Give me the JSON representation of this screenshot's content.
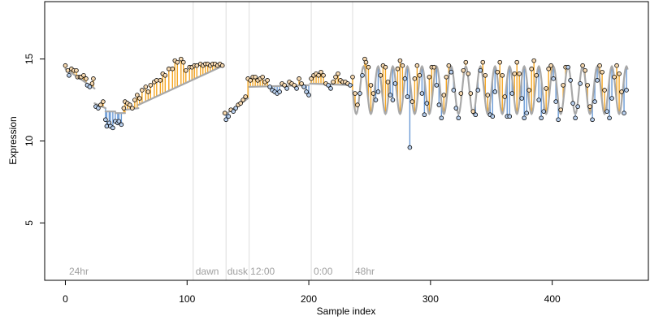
{
  "chart_data": {
    "type": "scatter",
    "title": "",
    "xlabel": "Sample index",
    "ylabel": "Expression",
    "xlim": [
      -17,
      479
    ],
    "ylim": [
      1.5,
      18.5
    ],
    "x_ticks": [
      0,
      100,
      200,
      300,
      400
    ],
    "y_ticks": [
      5,
      10,
      15
    ],
    "grid": false,
    "colors": {
      "fit_line": "#a8a8a8",
      "above_fit": "#f5a623",
      "below_fit": "#6a9ad6",
      "point_fill_above": "#f7d9b0",
      "point_fill_below": "#b9d0ee",
      "point_stroke": "#000000",
      "phase_divider": "#dddddd",
      "phase_label": "#a0a0a0"
    },
    "phase_labels": [
      {
        "label": "24hr",
        "x": 3
      },
      {
        "label": "dawn",
        "x": 107
      },
      {
        "label": "dusk",
        "x": 133
      },
      {
        "label": "12:00",
        "x": 152
      },
      {
        "label": "0:00",
        "x": 204
      },
      {
        "label": "48hr",
        "x": 238
      }
    ],
    "phase_dividers": [
      105,
      132,
      151,
      202,
      236
    ],
    "fit_segments": [
      {
        "x": [
          0,
          24
        ],
        "y": [
          14.4,
          13.2
        ]
      },
      {
        "x": [
          24,
          33
        ],
        "y": [
          12.3,
          12.0
        ]
      },
      {
        "x": [
          33,
          41
        ],
        "y": [
          11.8,
          11.8
        ]
      },
      {
        "x": [
          41,
          49
        ],
        "y": [
          11.7,
          11.7
        ]
      },
      {
        "x": [
          49,
          60
        ],
        "y": [
          11.9,
          12.0
        ]
      },
      {
        "x": [
          60,
          130
        ],
        "y": [
          12.2,
          14.6
        ]
      },
      {
        "x": [
          131,
          150
        ],
        "y": [
          11.6,
          12.6
        ]
      },
      {
        "x": [
          151,
          200
        ],
        "y": [
          13.3,
          13.4
        ]
      },
      {
        "x": [
          201,
          236
        ],
        "y": [
          13.5,
          13.4
        ]
      }
    ],
    "oscillation": {
      "x_start": 236,
      "x_end": 462,
      "period": 12,
      "center": 13.1,
      "amplitude": 1.45,
      "trough_at": 239
    },
    "series": [
      {
        "values": [
          [
            0,
            14.6
          ],
          [
            2,
            14.3
          ],
          [
            3,
            14.0
          ],
          [
            5,
            14.4
          ],
          [
            7,
            14.3
          ],
          [
            9,
            14.3
          ],
          [
            10,
            13.9
          ],
          [
            12,
            13.9
          ],
          [
            13,
            13.9
          ],
          [
            15,
            14.0
          ],
          [
            17,
            13.8
          ],
          [
            18,
            13.4
          ],
          [
            20,
            13.3
          ],
          [
            22,
            13.5
          ],
          [
            23,
            13.8
          ],
          [
            25,
            12.1
          ],
          [
            27,
            12.0
          ],
          [
            29,
            12.2
          ],
          [
            31,
            12.4
          ],
          [
            33,
            11.3
          ],
          [
            34,
            10.9
          ],
          [
            36,
            11.1
          ],
          [
            37,
            10.9
          ],
          [
            39,
            10.8
          ],
          [
            41,
            11.2
          ],
          [
            43,
            11.1
          ],
          [
            44,
            11.2
          ],
          [
            46,
            11.0
          ],
          [
            48,
            12.0
          ],
          [
            49,
            12.4
          ],
          [
            51,
            12.3
          ],
          [
            53,
            12.2
          ],
          [
            55,
            12.0
          ],
          [
            57,
            12.5
          ],
          [
            59,
            12.8
          ],
          [
            61,
            12.6
          ],
          [
            63,
            13.1
          ],
          [
            66,
            13.3
          ],
          [
            68,
            13.0
          ],
          [
            70,
            13.4
          ],
          [
            73,
            13.6
          ],
          [
            75,
            13.7
          ],
          [
            78,
            13.7
          ],
          [
            80,
            14.1
          ],
          [
            82,
            14.0
          ],
          [
            85,
            14.4
          ],
          [
            88,
            14.4
          ],
          [
            90,
            14.9
          ],
          [
            92,
            14.8
          ],
          [
            95,
            15.0
          ],
          [
            97,
            14.8
          ],
          [
            99,
            14.3
          ],
          [
            102,
            14.5
          ],
          [
            104,
            14.5
          ],
          [
            106,
            14.6
          ],
          [
            108,
            14.6
          ],
          [
            111,
            14.7
          ],
          [
            113,
            14.6
          ],
          [
            115,
            14.7
          ],
          [
            117,
            14.7
          ],
          [
            119,
            14.6
          ],
          [
            121,
            14.7
          ],
          [
            123,
            14.7
          ],
          [
            125,
            14.6
          ],
          [
            127,
            14.7
          ],
          [
            129,
            14.6
          ],
          [
            131,
            11.7
          ],
          [
            132,
            11.3
          ],
          [
            134,
            11.5
          ],
          [
            136,
            11.9
          ],
          [
            138,
            11.8
          ],
          [
            140,
            12.0
          ],
          [
            142,
            12.2
          ],
          [
            144,
            12.3
          ],
          [
            146,
            12.5
          ],
          [
            148,
            12.7
          ],
          [
            150,
            13.8
          ],
          [
            152,
            13.7
          ],
          [
            154,
            13.9
          ],
          [
            156,
            13.9
          ],
          [
            158,
            13.7
          ],
          [
            160,
            13.8
          ],
          [
            162,
            13.9
          ],
          [
            164,
            13.6
          ],
          [
            166,
            13.7
          ],
          [
            168,
            13.3
          ],
          [
            170,
            13.1
          ],
          [
            172,
            13.0
          ],
          [
            174,
            12.9
          ],
          [
            176,
            13.0
          ],
          [
            178,
            13.5
          ],
          [
            180,
            13.4
          ],
          [
            182,
            13.2
          ],
          [
            184,
            13.6
          ],
          [
            186,
            13.5
          ],
          [
            188,
            13.4
          ],
          [
            190,
            13.2
          ],
          [
            192,
            13.8
          ],
          [
            194,
            13.5
          ],
          [
            196,
            13.3
          ],
          [
            198,
            13.0
          ],
          [
            200,
            12.8
          ],
          [
            202,
            13.8
          ],
          [
            204,
            14.0
          ],
          [
            206,
            14.1
          ],
          [
            208,
            14.0
          ],
          [
            210,
            14.2
          ],
          [
            212,
            14.0
          ],
          [
            214,
            13.5
          ],
          [
            216,
            13.4
          ],
          [
            218,
            13.2
          ],
          [
            220,
            13.6
          ],
          [
            222,
            13.9
          ],
          [
            224,
            14.1
          ],
          [
            226,
            13.7
          ],
          [
            228,
            13.6
          ],
          [
            230,
            13.6
          ],
          [
            232,
            13.5
          ],
          [
            234,
            13.4
          ],
          [
            236,
            13.9
          ],
          [
            238,
            12.9
          ],
          [
            240,
            12.2
          ],
          [
            242,
            12.9
          ],
          [
            244,
            14.0
          ],
          [
            246,
            15.0
          ],
          [
            247,
            14.8
          ],
          [
            249,
            14.5
          ],
          [
            251,
            13.4
          ],
          [
            253,
            12.9
          ],
          [
            255,
            12.5
          ],
          [
            257,
            13.0
          ],
          [
            259,
            14.0
          ],
          [
            261,
            14.6
          ],
          [
            263,
            14.5
          ],
          [
            265,
            13.6
          ],
          [
            267,
            12.8
          ],
          [
            269,
            12.5
          ],
          [
            271,
            13.5
          ],
          [
            273,
            14.4
          ],
          [
            275,
            14.9
          ],
          [
            277,
            14.6
          ],
          [
            279,
            13.8
          ],
          [
            281,
            12.7
          ],
          [
            283,
            9.6
          ],
          [
            285,
            12.4
          ],
          [
            287,
            13.8
          ],
          [
            289,
            14.6
          ],
          [
            291,
            14.0
          ],
          [
            293,
            12.9
          ],
          [
            295,
            11.6
          ],
          [
            297,
            12.3
          ],
          [
            299,
            13.9
          ],
          [
            301,
            14.5
          ],
          [
            303,
            14.5
          ],
          [
            305,
            13.4
          ],
          [
            307,
            12.2
          ],
          [
            309,
            11.4
          ],
          [
            311,
            12.8
          ],
          [
            313,
            13.9
          ],
          [
            315,
            14.6
          ],
          [
            317,
            14.2
          ],
          [
            319,
            13.1
          ],
          [
            321,
            12.0
          ],
          [
            323,
            11.4
          ],
          [
            325,
            12.9
          ],
          [
            327,
            14.3
          ],
          [
            329,
            14.8
          ],
          [
            331,
            14.1
          ],
          [
            333,
            12.9
          ],
          [
            335,
            11.8
          ],
          [
            337,
            11.6
          ],
          [
            339,
            13.1
          ],
          [
            341,
            14.3
          ],
          [
            343,
            14.8
          ],
          [
            345,
            14.0
          ],
          [
            347,
            12.8
          ],
          [
            349,
            11.6
          ],
          [
            351,
            11.5
          ],
          [
            353,
            13.0
          ],
          [
            355,
            14.2
          ],
          [
            357,
            14.8
          ],
          [
            359,
            14.0
          ],
          [
            361,
            12.7
          ],
          [
            363,
            11.5
          ],
          [
            365,
            11.5
          ],
          [
            367,
            12.9
          ],
          [
            369,
            14.1
          ],
          [
            371,
            14.8
          ],
          [
            373,
            14.1
          ],
          [
            375,
            12.6
          ],
          [
            377,
            11.4
          ],
          [
            379,
            11.7
          ],
          [
            381,
            13.1
          ],
          [
            383,
            14.4
          ],
          [
            385,
            14.9
          ],
          [
            387,
            14.0
          ],
          [
            389,
            12.5
          ],
          [
            391,
            11.4
          ],
          [
            393,
            11.8
          ],
          [
            395,
            13.2
          ],
          [
            397,
            14.4
          ],
          [
            399,
            14.6
          ],
          [
            401,
            13.8
          ],
          [
            403,
            12.4
          ],
          [
            405,
            11.3
          ],
          [
            407,
            11.9
          ],
          [
            409,
            13.4
          ],
          [
            411,
            14.5
          ],
          [
            413,
            14.5
          ],
          [
            415,
            13.7
          ],
          [
            417,
            12.3
          ],
          [
            419,
            11.4
          ],
          [
            421,
            12.1
          ],
          [
            423,
            13.5
          ],
          [
            425,
            14.6
          ],
          [
            427,
            14.3
          ],
          [
            429,
            13.4
          ],
          [
            431,
            12.1
          ],
          [
            433,
            11.3
          ],
          [
            435,
            12.4
          ],
          [
            437,
            13.7
          ],
          [
            439,
            14.6
          ],
          [
            441,
            14.2
          ],
          [
            443,
            13.1
          ],
          [
            445,
            11.8
          ],
          [
            447,
            11.4
          ],
          [
            449,
            12.6
          ],
          [
            451,
            13.9
          ],
          [
            453,
            14.6
          ],
          [
            455,
            14.1
          ],
          [
            457,
            13.0
          ],
          [
            459,
            11.7
          ],
          [
            461,
            13.1
          ]
        ]
      }
    ]
  }
}
